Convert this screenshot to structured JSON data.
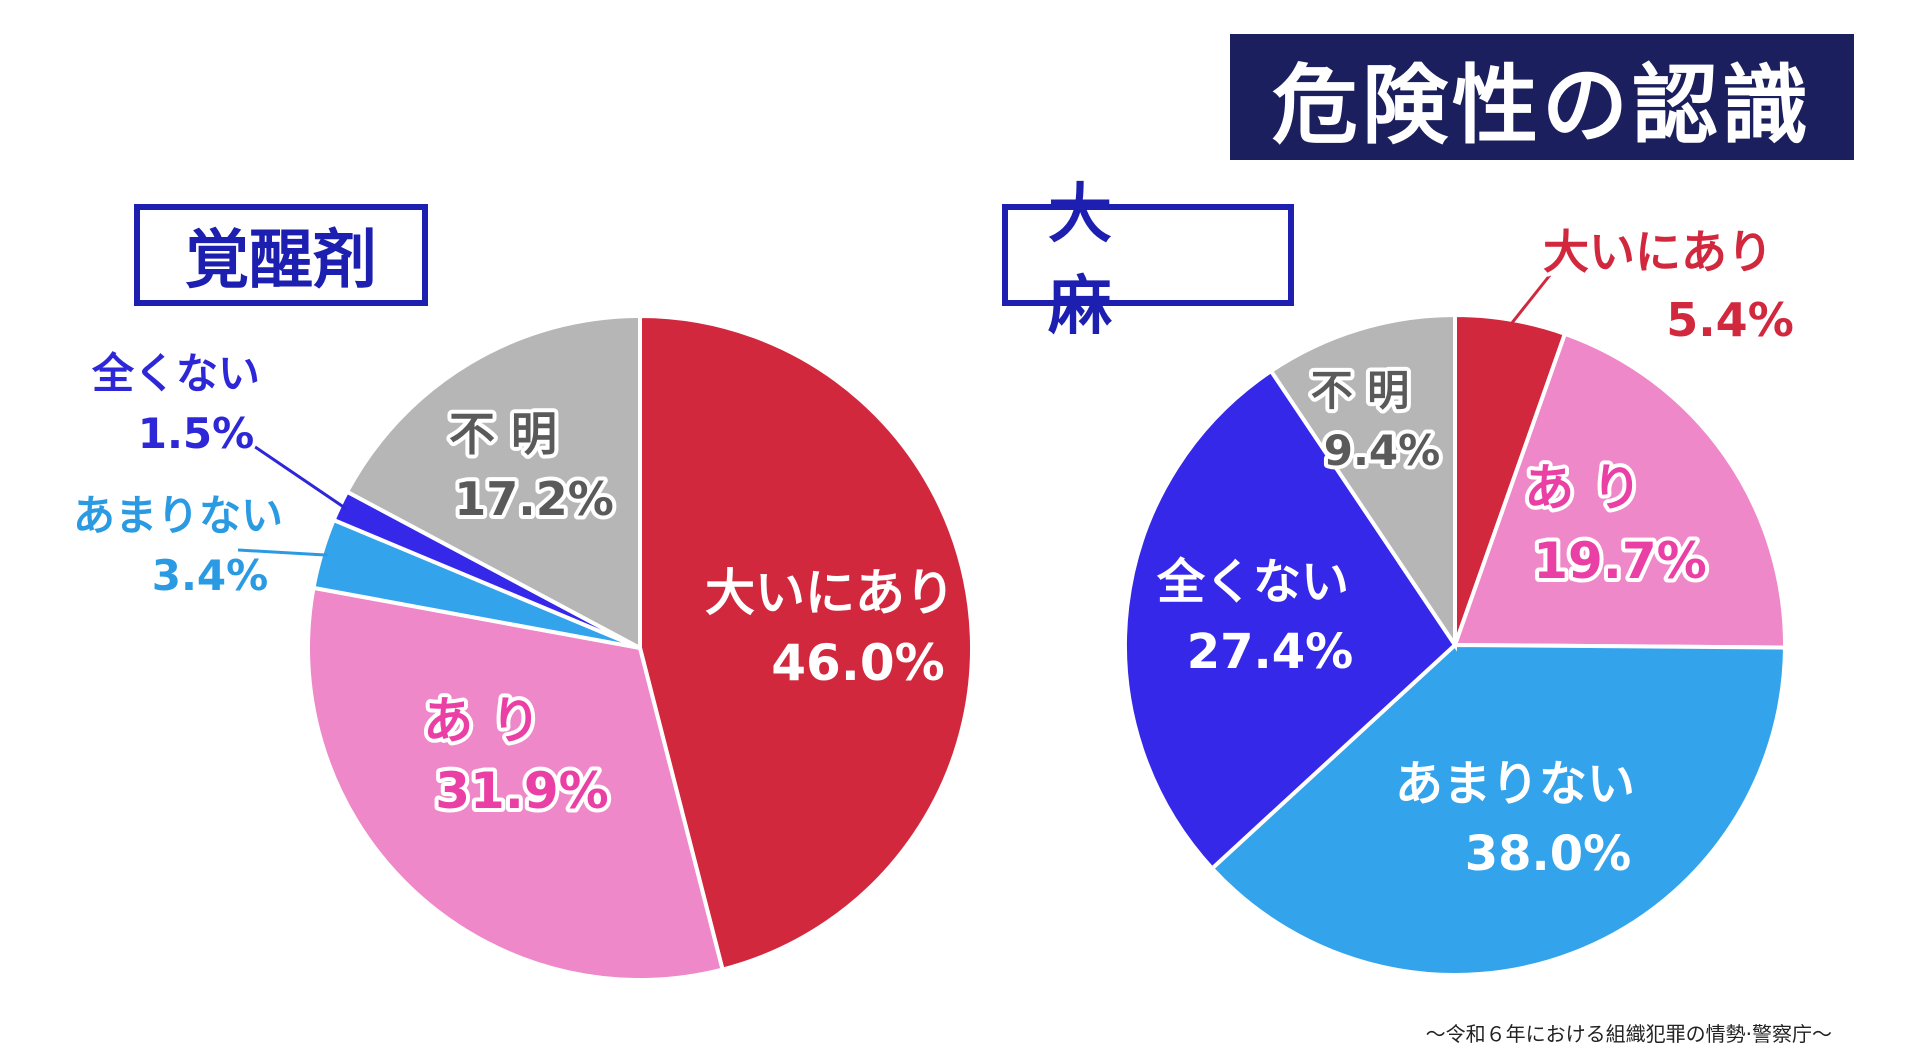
{
  "title": "危険性の認識",
  "source": "〜令和６年における組織犯罪の情勢·警察庁〜",
  "colors": {
    "title_bg": "#1b1f5e",
    "label_border": "#1c1fb0"
  },
  "chart_data": [
    {
      "type": "pie",
      "title": "覚醒剤",
      "slices": [
        {
          "label": "大いにあり",
          "value": 46.0,
          "value_text": "46.0%",
          "color": "#d2283e",
          "label_color": "#ffffff"
        },
        {
          "label": "あ り",
          "value": 31.9,
          "value_text": "31.9%",
          "color": "#ee88c9",
          "label_color": "#ea3fa4"
        },
        {
          "label": "あまりない",
          "value": 3.4,
          "value_text": "3.4%",
          "color": "#33a4ec",
          "label_color": "#2a9ae3"
        },
        {
          "label": "全くない",
          "value": 1.5,
          "value_text": "1.5%",
          "color": "#3528e9",
          "label_color": "#2d27d8"
        },
        {
          "label": "不 明",
          "value": 17.2,
          "value_text": "17.2%",
          "color": "#b6b6b6",
          "label_color": "#5a5a5a"
        }
      ]
    },
    {
      "type": "pie",
      "title": "大 麻",
      "slices": [
        {
          "label": "大いにあり",
          "value": 5.4,
          "value_text": "5.4%",
          "color": "#d2283e",
          "label_color": "#d2283e"
        },
        {
          "label": "あ り",
          "value": 19.7,
          "value_text": "19.7%",
          "color": "#ee88c9",
          "label_color": "#ea3fa4"
        },
        {
          "label": "あまりない",
          "value": 38.0,
          "value_text": "38.0%",
          "color": "#33a4ec",
          "label_color": "#ffffff"
        },
        {
          "label": "全くない",
          "value": 27.4,
          "value_text": "27.4%",
          "color": "#3528e9",
          "label_color": "#ffffff"
        },
        {
          "label": "不 明",
          "value": 9.4,
          "value_text": "9.4%",
          "color": "#b6b6b6",
          "label_color": "#5a5a5a"
        }
      ]
    }
  ]
}
